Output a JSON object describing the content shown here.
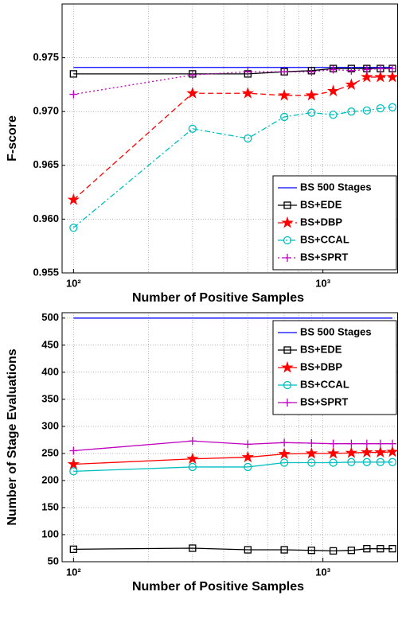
{
  "chart_data": [
    {
      "type": "line",
      "xlabel": "Number of Positive Samples",
      "ylabel": "F-score",
      "xscale": "log",
      "xlim": [
        90,
        2000
      ],
      "xticks": [
        {
          "value": 100,
          "label": "10²"
        },
        {
          "value": 1000,
          "label": "10³"
        }
      ],
      "ylim": [
        0.955,
        0.98
      ],
      "yticks": [
        0.955,
        {
          "value": 0.96,
          "label": "0.960"
        },
        0.965,
        {
          "value": 0.97,
          "label": "0.970"
        },
        0.975
      ],
      "grid": true,
      "legend": "lower right",
      "x": [
        100,
        300,
        500,
        700,
        900,
        1100,
        1300,
        1500,
        1700,
        1900
      ],
      "series": [
        {
          "name": "BS 500 Stages",
          "color": "#0000ff",
          "linestyle": "solid",
          "marker": "none",
          "values": [
            0.9741,
            0.9741,
            0.9741,
            0.9741,
            0.9741,
            0.9741,
            0.9741,
            0.9741,
            0.9741,
            0.9741
          ]
        },
        {
          "name": "BS+EDE",
          "color": "#000000",
          "linestyle": "solid",
          "marker": "square",
          "values": [
            0.9735,
            0.9735,
            0.9735,
            0.9737,
            0.9738,
            0.974,
            0.974,
            0.974,
            0.974,
            0.974
          ]
        },
        {
          "name": "BS+DBP",
          "color": "#ff0000",
          "linestyle": "dashed",
          "marker": "star",
          "values": [
            0.9618,
            0.9717,
            0.9717,
            0.9715,
            0.9715,
            0.9719,
            0.9725,
            0.9732,
            0.9732,
            0.9732
          ]
        },
        {
          "name": "BS+CCAL",
          "color": "#00bfbf",
          "linestyle": "dashdot",
          "marker": "circle",
          "values": [
            0.9592,
            0.9684,
            0.9675,
            0.9695,
            0.9699,
            0.9697,
            0.97,
            0.9701,
            0.9703,
            0.9704
          ]
        },
        {
          "name": "BS+SPRT",
          "color": "#bf00bf",
          "linestyle": "dotted",
          "marker": "plus",
          "values": [
            0.9716,
            0.9734,
            0.9737,
            0.9737,
            0.9737,
            0.9739,
            0.9738,
            0.9739,
            0.974,
            0.974
          ]
        }
      ]
    },
    {
      "type": "line",
      "xlabel": "Number of Positive Samples",
      "ylabel": "Number of Stage Evaluations",
      "xscale": "log",
      "xlim": [
        90,
        2000
      ],
      "xticks": [
        {
          "value": 100,
          "label": "10²"
        },
        {
          "value": 1000,
          "label": "10³"
        }
      ],
      "ylim": [
        50,
        510
      ],
      "yticks": [
        50,
        100,
        150,
        200,
        250,
        300,
        350,
        400,
        450,
        500
      ],
      "grid": true,
      "legend": "upper right",
      "x": [
        100,
        300,
        500,
        700,
        900,
        1100,
        1300,
        1500,
        1700,
        1900
      ],
      "series": [
        {
          "name": "BS 500 Stages",
          "color": "#0000ff",
          "linestyle": "solid",
          "marker": "none",
          "values": [
            500,
            500,
            500,
            500,
            500,
            500,
            500,
            500,
            500,
            500
          ]
        },
        {
          "name": "BS+EDE",
          "color": "#000000",
          "linestyle": "solid",
          "marker": "square",
          "values": [
            73,
            75,
            72,
            72,
            71,
            70,
            71,
            74,
            74,
            74
          ]
        },
        {
          "name": "BS+DBP",
          "color": "#ff0000",
          "linestyle": "solid",
          "marker": "star",
          "values": [
            230,
            240,
            243,
            249,
            250,
            250,
            251,
            252,
            252,
            253
          ]
        },
        {
          "name": "BS+CCAL",
          "color": "#00bfbf",
          "linestyle": "solid",
          "marker": "circle",
          "values": [
            217,
            225,
            225,
            233,
            233,
            233,
            234,
            234,
            234,
            234
          ]
        },
        {
          "name": "BS+SPRT",
          "color": "#bf00bf",
          "linestyle": "solid",
          "marker": "plus",
          "values": [
            255,
            273,
            267,
            270,
            269,
            268,
            268,
            268,
            268,
            268
          ]
        }
      ]
    }
  ]
}
